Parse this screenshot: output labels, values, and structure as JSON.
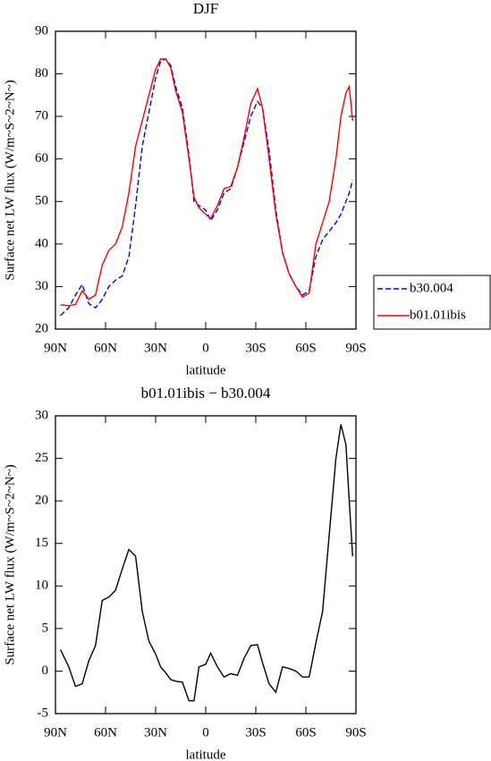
{
  "chart_data": [
    {
      "type": "line",
      "title": "DJF",
      "x_label": "latitude",
      "y_label": "Surface net LW flux (W/m~S~2~N~)",
      "x": [
        87,
        82,
        78,
        74,
        70,
        66,
        62,
        58,
        54,
        50,
        46,
        42,
        38,
        34,
        30,
        27,
        24,
        21,
        18,
        14,
        10,
        7,
        4,
        0,
        -3,
        -7,
        -11,
        -15,
        -19,
        -23,
        -27,
        -31,
        -34,
        -38,
        -42,
        -46,
        -50,
        -54,
        -58,
        -62,
        -66,
        -70,
        -74,
        -78,
        -81,
        -84,
        -86,
        -88
      ],
      "series": [
        {
          "name": "b30.004",
          "color": "#0000ff",
          "dashed": true,
          "values": [
            23.2,
            25,
            28,
            30.5,
            26,
            25,
            27,
            30,
            31.5,
            32.5,
            37,
            49,
            63,
            71,
            79,
            83,
            83.5,
            82,
            77,
            72,
            61,
            50,
            49,
            48,
            45.5,
            48,
            52,
            53,
            58,
            64,
            70,
            73.5,
            72,
            62,
            48,
            38,
            33,
            30,
            28,
            29,
            37,
            41,
            43,
            45,
            47,
            50,
            52,
            55
          ]
        },
        {
          "name": "b01.01ibis",
          "color": "#ff0000",
          "dashed": false,
          "values": [
            25.7,
            25.5,
            25.8,
            29,
            27,
            28,
            35,
            38.5,
            40,
            44,
            52,
            63,
            69,
            75,
            81,
            83.5,
            83.5,
            81.5,
            76,
            71,
            60,
            51,
            48.5,
            47,
            46,
            49,
            53,
            53.5,
            58,
            65,
            73,
            76.5,
            72,
            60,
            47,
            38,
            33,
            30,
            27.5,
            28.5,
            40,
            45,
            50,
            60,
            70,
            75.5,
            77,
            69
          ]
        }
      ],
      "xlim": [
        90,
        -90
      ],
      "xticks": [
        {
          "value": 90,
          "label": "90N"
        },
        {
          "value": 60,
          "label": "60N"
        },
        {
          "value": 30,
          "label": "30N"
        },
        0,
        {
          "value": -30,
          "label": "30S"
        },
        {
          "value": -60,
          "label": "60S"
        },
        {
          "value": -90,
          "label": "90S"
        }
      ],
      "ylim": [
        20,
        90
      ],
      "yticks": [
        20,
        30,
        40,
        50,
        60,
        70,
        80,
        90
      ],
      "legend": "right"
    },
    {
      "type": "line",
      "title": "b01.01ibis − b30.004",
      "x_label": "latitude",
      "y_label": "Surface net LW flux (W/m~S~2~N~)",
      "x": [
        87,
        82,
        78,
        74,
        70,
        66,
        62,
        58,
        54,
        50,
        46,
        42,
        38,
        34,
        30,
        27,
        24,
        21,
        18,
        14,
        10,
        7,
        4,
        0,
        -3,
        -7,
        -11,
        -15,
        -19,
        -23,
        -27,
        -31,
        -34,
        -38,
        -42,
        -46,
        -50,
        -54,
        -58,
        -62,
        -66,
        -70,
        -74,
        -78,
        -81,
        -84,
        -86,
        -88
      ],
      "series": [
        {
          "color": "#000000",
          "dashed": false,
          "values": [
            2.5,
            0.5,
            -1.8,
            -1.5,
            1.2,
            3,
            8.3,
            8.7,
            9.5,
            12,
            14.3,
            13.5,
            7,
            3.5,
            2,
            0.5,
            -0.2,
            -1,
            -1.2,
            -1.3,
            -3.5,
            -3.5,
            0.5,
            0.8,
            2.1,
            0.5,
            -0.7,
            -0.3,
            -0.5,
            1.5,
            3,
            3.1,
            1,
            -1.5,
            -2.5,
            0.5,
            0.3,
            0,
            -0.7,
            -0.7,
            3.3,
            7,
            16,
            25,
            29,
            26.6,
            20,
            13.5
          ]
        }
      ],
      "xlim": [
        90,
        -90
      ],
      "xticks": [
        {
          "value": 90,
          "label": "90N"
        },
        {
          "value": 60,
          "label": "60N"
        },
        {
          "value": 30,
          "label": "30N"
        },
        0,
        {
          "value": -30,
          "label": "30S"
        },
        {
          "value": -60,
          "label": "60S"
        },
        {
          "value": -90,
          "label": "90S"
        }
      ],
      "ylim": [
        -5,
        30
      ],
      "yticks": [
        -5,
        0,
        5,
        10,
        15,
        20,
        25,
        30
      ]
    }
  ]
}
